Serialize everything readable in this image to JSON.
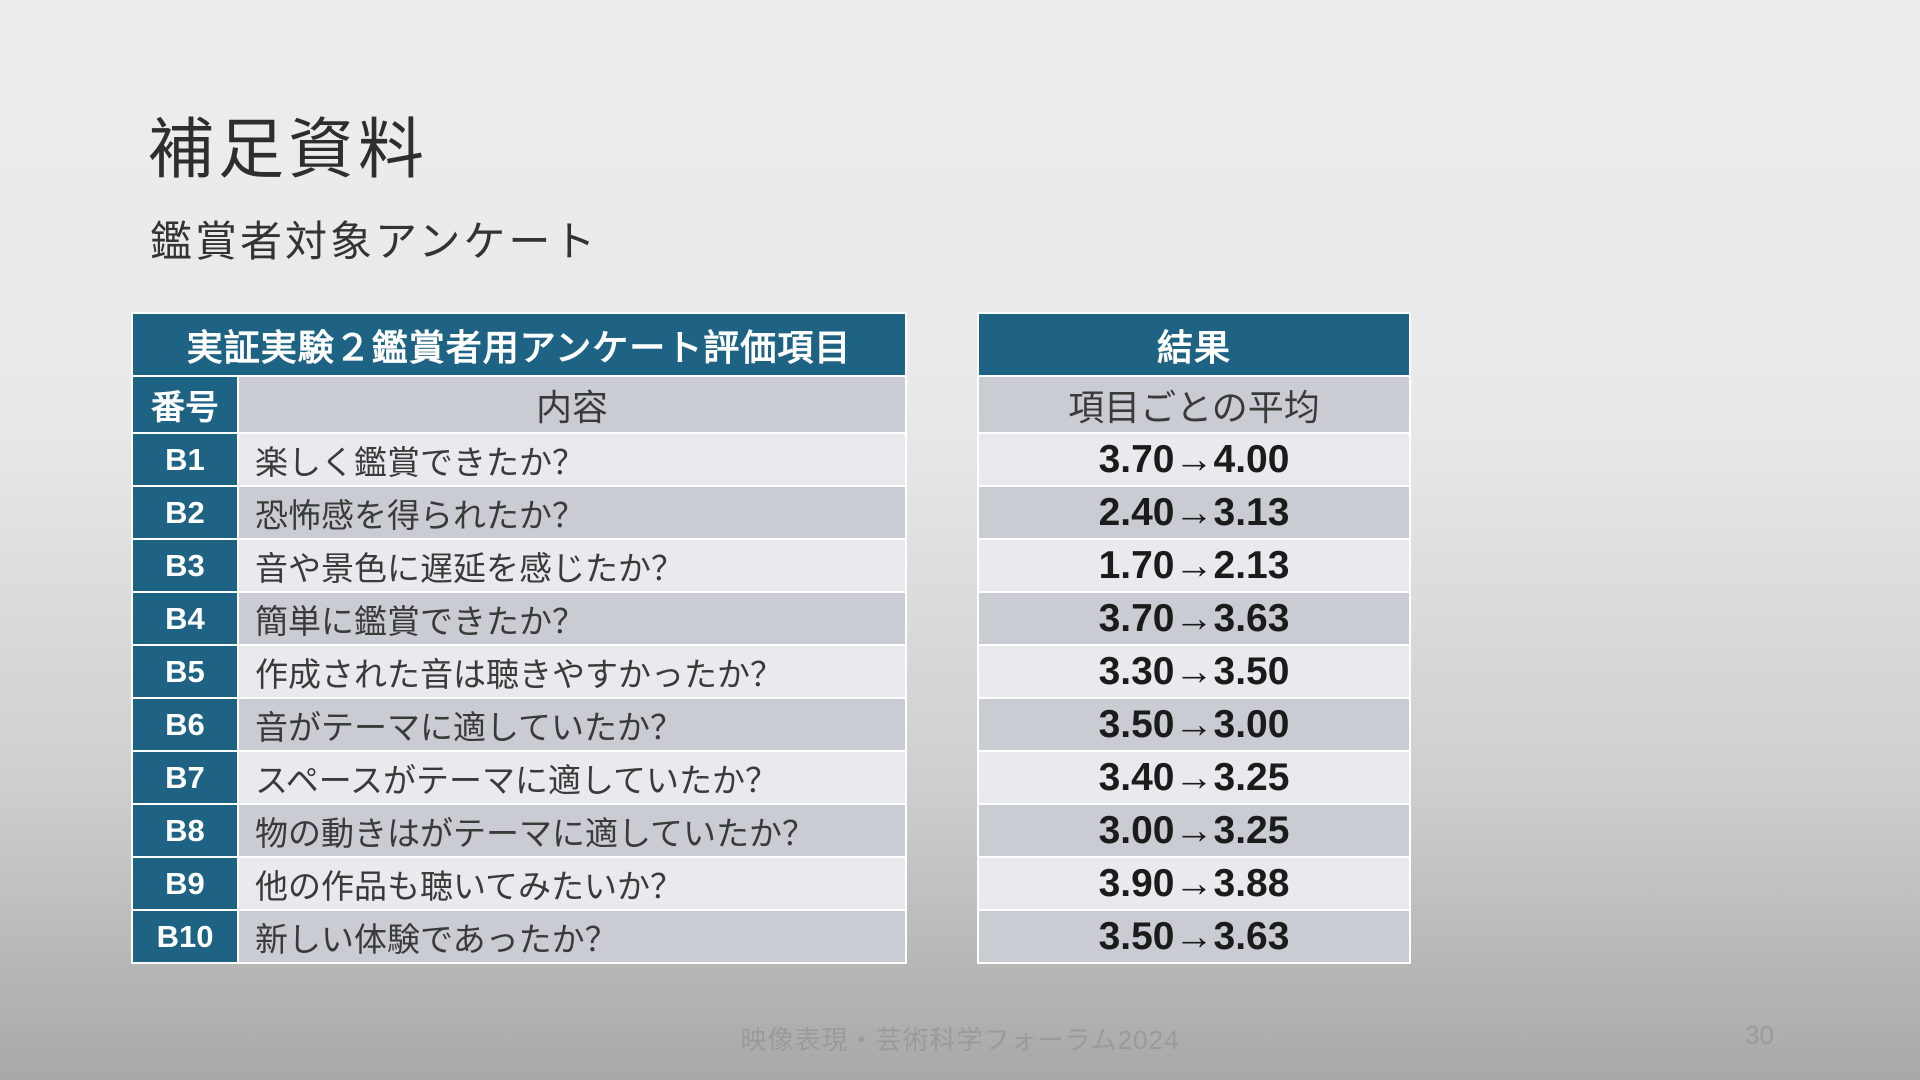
{
  "slide": {
    "title": "補足資料",
    "subtitle": "鑑賞者対象アンケート",
    "footer": {
      "conference": "映像表現・芸術科学フォーラム2024",
      "page_number": "30"
    }
  },
  "survey_table": {
    "header": "実証実験２鑑賞者用アンケート評価項目",
    "columns": {
      "number": "番号",
      "content": "内容"
    },
    "rows": [
      {
        "id": "B1",
        "content": "楽しく鑑賞できたか？"
      },
      {
        "id": "B2",
        "content": "恐怖感を得られたか？"
      },
      {
        "id": "B3",
        "content": "音や景色に遅延を感じたか？"
      },
      {
        "id": "B4",
        "content": "簡単に鑑賞できたか？"
      },
      {
        "id": "B5",
        "content": "作成された音は聴きやすかったか？"
      },
      {
        "id": "B6",
        "content": "音がテーマに適していたか？"
      },
      {
        "id": "B7",
        "content": "スペースがテーマに適していたか？"
      },
      {
        "id": "B8",
        "content": "物の動きはがテーマに適していたか？"
      },
      {
        "id": "B9",
        "content": "他の作品も聴いてみたいか？"
      },
      {
        "id": "B10",
        "content": "新しい体験であったか？"
      }
    ]
  },
  "results_table": {
    "header": "結果",
    "subheader": "項目ごとの平均",
    "values": [
      "3.70→4.00",
      "2.40→3.13",
      "1.70→2.13",
      "3.70→3.63",
      "3.30→3.50",
      "3.50→3.00",
      "3.40→3.25",
      "3.00→3.25",
      "3.90→3.88",
      "3.50→3.63"
    ]
  },
  "colors": {
    "accent_teal": "#1E6384",
    "band_dark": "#C9CDD3",
    "band_light": "#E8EAED",
    "footer_gray": "#9A9A9A"
  }
}
